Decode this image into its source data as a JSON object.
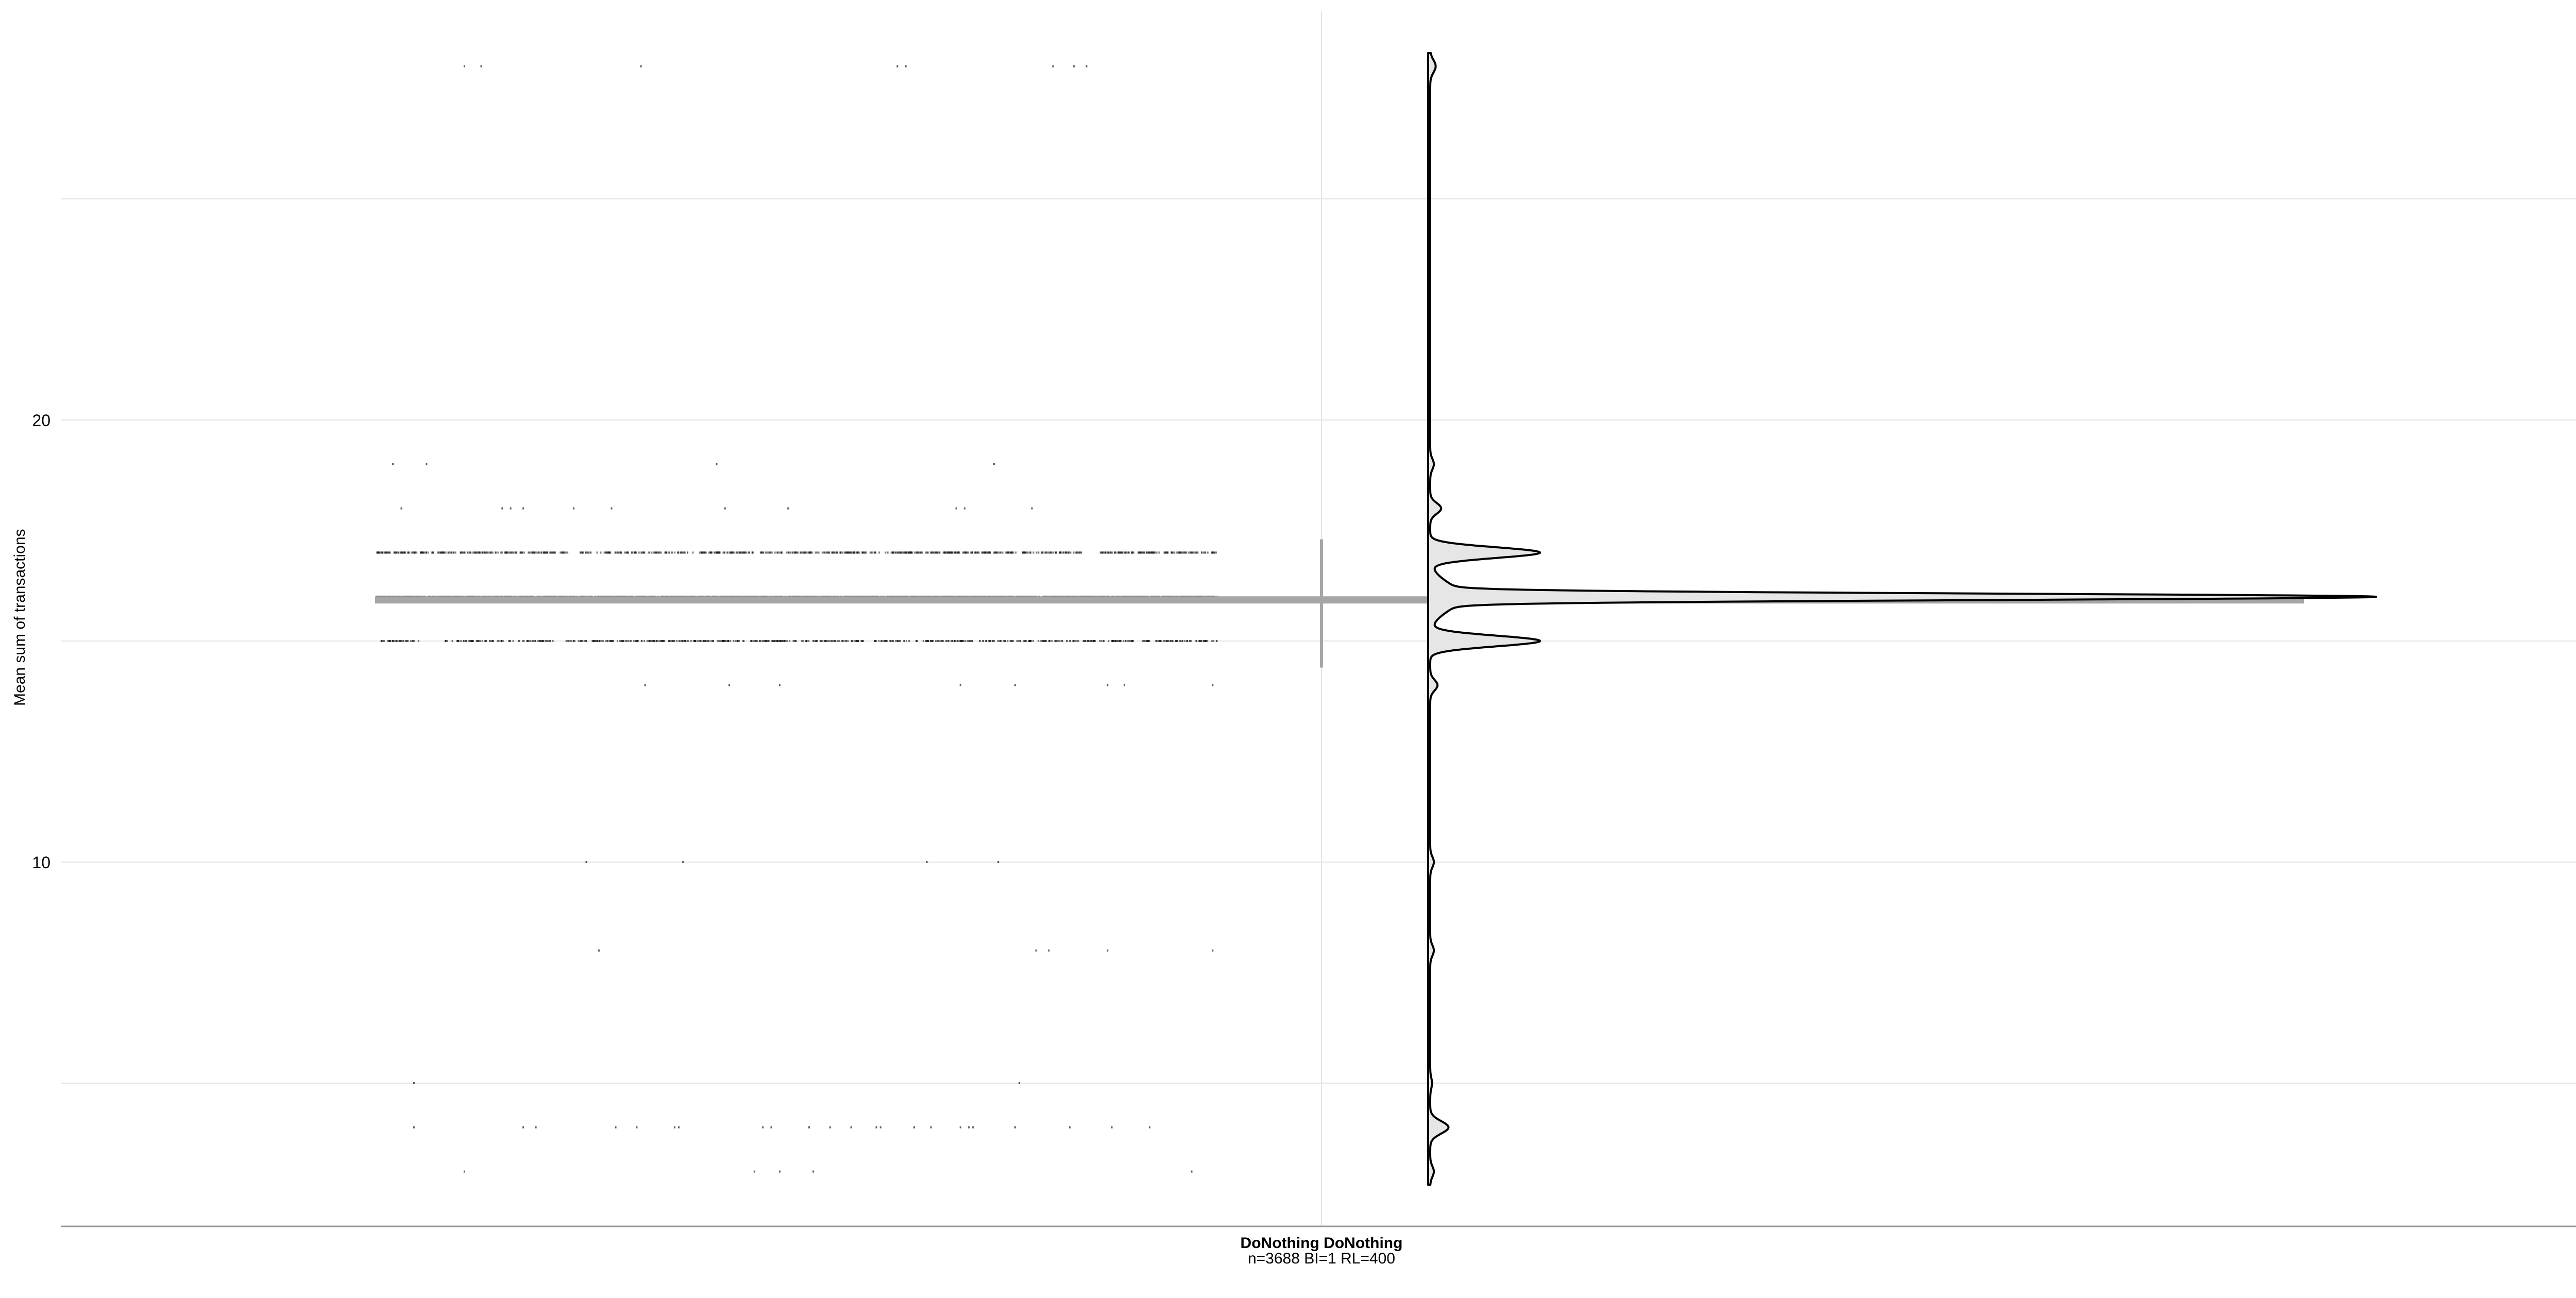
{
  "chart_data": {
    "type": "raincloud",
    "title": "",
    "xlabel": "",
    "ylabel": "Mean sum of transactions",
    "ylim": [
      1.3,
      28.8
    ],
    "y_ticks": [
      10,
      20
    ],
    "gridlines_y": [
      5,
      10,
      15,
      20,
      25
    ],
    "grid": true,
    "category": {
      "label": "DoNothing DoNothing",
      "sublabel": "n=3688 BI=1 RL=400"
    },
    "summary": {
      "mean": 16.0,
      "lower": 14.4,
      "upper": 17.3
    },
    "points": {
      "x_range": [
        0,
        1
      ],
      "bands": [
        {
          "y": 28,
          "x": [
            0.105,
            0.125,
            0.315,
            0.62,
            0.63,
            0.805,
            0.83,
            0.845
          ]
        },
        {
          "y": 19,
          "x": [
            0.02,
            0.06,
            0.405,
            0.735
          ]
        },
        {
          "y": 18,
          "x": [
            0.03,
            0.15,
            0.16,
            0.175,
            0.235,
            0.28,
            0.415,
            0.49,
            0.69,
            0.7,
            0.78
          ]
        },
        {
          "y": 17,
          "dense": true,
          "count": 900,
          "span": [
            0,
            1
          ],
          "gaps": [
            [
              0.23,
              0.24
            ],
            [
              0.37,
              0.375
            ],
            [
              0.6,
              0.605
            ],
            [
              0.76,
              0.765
            ],
            [
              0.84,
              0.86
            ]
          ]
        },
        {
          "y": 16,
          "dense": true,
          "count": 2000,
          "span": [
            0,
            1
          ],
          "gaps": []
        },
        {
          "y": 15,
          "dense": true,
          "count": 700,
          "span": [
            0.005,
            1
          ],
          "gaps": [
            [
              0.05,
              0.08
            ],
            [
              0.21,
              0.225
            ],
            [
              0.58,
              0.59
            ],
            [
              0.71,
              0.715
            ],
            [
              0.9,
              0.91
            ]
          ]
        },
        {
          "y": 14,
          "x": [
            0.32,
            0.42,
            0.48,
            0.695,
            0.76,
            0.87,
            0.89,
            0.995
          ]
        },
        {
          "y": 10,
          "x": [
            0.25,
            0.365,
            0.655,
            0.74
          ]
        },
        {
          "y": 8,
          "x": [
            0.265,
            0.785,
            0.8,
            0.87,
            0.995
          ]
        },
        {
          "y": 5,
          "x": [
            0.045,
            0.765
          ]
        },
        {
          "y": 4,
          "x": [
            0.045,
            0.175,
            0.19,
            0.285,
            0.31,
            0.355,
            0.36,
            0.46,
            0.47,
            0.515,
            0.54,
            0.565,
            0.595,
            0.6,
            0.64,
            0.66,
            0.695,
            0.705,
            0.71,
            0.76,
            0.825,
            0.875,
            0.92
          ]
        },
        {
          "y": 3,
          "x": [
            0.105,
            0.45,
            0.48,
            0.52,
            0.97
          ]
        }
      ]
    },
    "density": {
      "y_range": [
        3,
        28
      ],
      "components": [
        {
          "mean": 16,
          "sd": 0.07,
          "weight": 1.0
        },
        {
          "mean": 16,
          "sd": 0.3,
          "weight": 0.035
        },
        {
          "mean": 17,
          "sd": 0.12,
          "weight": 0.12
        },
        {
          "mean": 15,
          "sd": 0.12,
          "weight": 0.12
        },
        {
          "mean": 18,
          "sd": 0.12,
          "weight": 0.012
        },
        {
          "mean": 19,
          "sd": 0.12,
          "weight": 0.004
        },
        {
          "mean": 14,
          "sd": 0.12,
          "weight": 0.008
        },
        {
          "mean": 10,
          "sd": 0.12,
          "weight": 0.004
        },
        {
          "mean": 8,
          "sd": 0.12,
          "weight": 0.004
        },
        {
          "mean": 5,
          "sd": 0.12,
          "weight": 0.002
        },
        {
          "mean": 4,
          "sd": 0.14,
          "weight": 0.02
        },
        {
          "mean": 3,
          "sd": 0.12,
          "weight": 0.004
        },
        {
          "mean": 28,
          "sd": 0.14,
          "weight": 0.006
        }
      ]
    },
    "colors": {
      "points": "#1a1a1a",
      "grid": "#e3e3e3",
      "summary": "#a6a6a6",
      "density_fill": "#e6e6e6",
      "density_line": "#000000",
      "axis": "#999999",
      "text": "#000000"
    }
  }
}
